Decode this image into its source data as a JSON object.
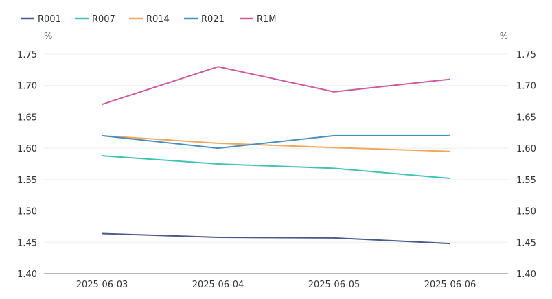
{
  "chart_data": {
    "type": "line",
    "categories": [
      "2025-06-03",
      "2025-06-04",
      "2025-06-05",
      "2025-06-06"
    ],
    "series": [
      {
        "name": "R001",
        "color": "#4a5a8a",
        "values": [
          1.464,
          1.458,
          1.457,
          1.448
        ]
      },
      {
        "name": "R007",
        "color": "#40c3b3",
        "values": [
          1.588,
          1.575,
          1.568,
          1.552
        ]
      },
      {
        "name": "R014",
        "color": "#f0a75a",
        "values": [
          1.62,
          1.608,
          1.601,
          1.595
        ]
      },
      {
        "name": "R021",
        "color": "#4a8fc2",
        "values": [
          1.62,
          1.6,
          1.62,
          1.62
        ]
      },
      {
        "name": "R1M",
        "color": "#cc5aa0",
        "values": [
          1.67,
          1.73,
          1.69,
          1.71
        ]
      }
    ],
    "ylim": [
      1.4,
      1.75
    ],
    "yticks": [
      "1.40",
      "1.45",
      "1.50",
      "1.55",
      "1.60",
      "1.65",
      "1.70",
      "1.75"
    ],
    "ylabel_left": "%",
    "ylabel_right": "%",
    "grid": true,
    "legend_position": "top-left"
  }
}
